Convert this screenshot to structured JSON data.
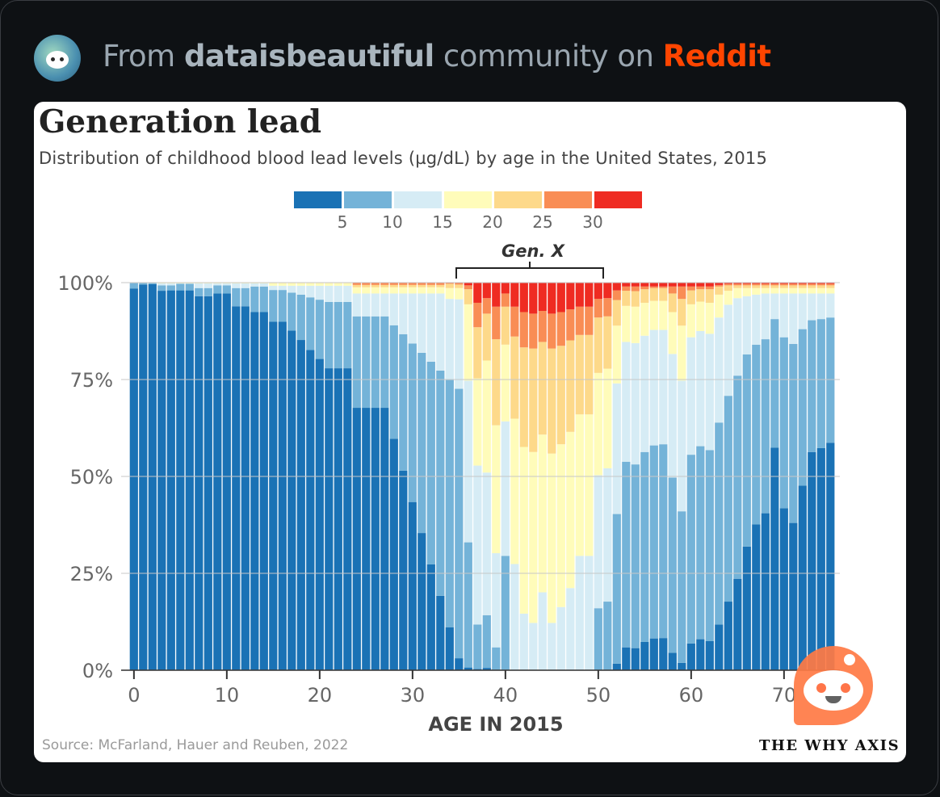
{
  "header": {
    "prefix": "From",
    "community": "dataisbeautiful",
    "middle": "community on",
    "platform": "Reddit"
  },
  "colors": {
    "accent": "#ff4500",
    "bins": [
      "#1a72b5",
      "#74b3d8",
      "#d6ecf5",
      "#fffcba",
      "#fdd98a",
      "#f98d55",
      "#ef2b22"
    ]
  },
  "footer": {
    "source": "Source: McFarland, Hauer and Reuben, 2022",
    "brand": "THE WHY AXIS"
  },
  "chart_data": {
    "type": "bar",
    "stacked": true,
    "title": "Generation lead",
    "subtitle": "Distribution of childhood blood lead levels (µg/dL) by age in the United States, 2015",
    "xlabel": "AGE IN 2015",
    "ylabel": "",
    "ylim": [
      0,
      100
    ],
    "yticks": [
      "0%",
      "25%",
      "50%",
      "75%",
      "100%"
    ],
    "xticks": [
      "0",
      "10",
      "20",
      "30",
      "40",
      "50",
      "60",
      "70"
    ],
    "legend": {
      "placement": "top-center",
      "labels": [
        "5",
        "10",
        "15",
        "20",
        "25",
        "30"
      ]
    },
    "annotation": {
      "label": "Gen. X",
      "from_age": 35,
      "to_age": 50
    },
    "x": [
      0,
      1,
      2,
      3,
      4,
      5,
      6,
      7,
      8,
      9,
      10,
      11,
      12,
      13,
      14,
      15,
      16,
      17,
      18,
      19,
      20,
      21,
      22,
      23,
      24,
      25,
      26,
      27,
      28,
      29,
      30,
      31,
      32,
      33,
      34,
      35,
      36,
      37,
      38,
      39,
      40,
      41,
      42,
      43,
      44,
      45,
      46,
      47,
      48,
      49,
      50,
      51,
      52,
      53,
      54,
      55,
      56,
      57,
      58,
      59,
      60,
      61,
      62,
      63,
      64,
      65,
      66,
      67,
      68,
      69,
      70,
      71,
      72,
      73,
      74,
      75
    ],
    "cumulative_series_note": "each series gives cumulative % at the top of that bin; remaining to 100% is >30",
    "series": [
      {
        "name": "<5",
        "cumulative": [
          98.5,
          99.5,
          99.6,
          97.9,
          98,
          98,
          98,
          96.5,
          96.5,
          97.2,
          97.2,
          93.9,
          93.9,
          92.4,
          92.4,
          89.9,
          89.9,
          87.6,
          85.2,
          82.6,
          80.3,
          77.9,
          77.9,
          77.9,
          67.7,
          67.7,
          67.7,
          67.7,
          59.7,
          51.5,
          43.4,
          35.4,
          27.3,
          19.2,
          11.1,
          3.1,
          0.7,
          0.3,
          0.6,
          0,
          0,
          0,
          0,
          0,
          0,
          0,
          0,
          0,
          0,
          0,
          0,
          0,
          1.7,
          5.9,
          5.7,
          7.3,
          8.2,
          8.3,
          4.5,
          1.9,
          6.9,
          8,
          7.5,
          11.8,
          17.7,
          23.6,
          31.9,
          37.6,
          40.5,
          57.4,
          41.8,
          38,
          47.6,
          56.3,
          57.3,
          58.7
        ]
      },
      {
        "name": "5-10",
        "cumulative": [
          99.9,
          99.9,
          99.9,
          99.3,
          99.3,
          99.7,
          99.7,
          98.6,
          98.6,
          99.3,
          99.3,
          98.6,
          98.6,
          99,
          99,
          98.1,
          98.1,
          97.4,
          96.9,
          96.2,
          95.6,
          95,
          95,
          95,
          91.3,
          91.3,
          91.3,
          91.3,
          89,
          86.7,
          84.3,
          81.9,
          79.6,
          77.3,
          74.9,
          72.6,
          33,
          11.8,
          14.2,
          5.9,
          29.5,
          0,
          0,
          0,
          0,
          0,
          0,
          0,
          0,
          0,
          16,
          17.7,
          40.3,
          53.8,
          53.1,
          56.3,
          58,
          58.3,
          49.7,
          41,
          55.6,
          57.8,
          56.8,
          63.9,
          70.8,
          76,
          81.5,
          84,
          85.4,
          90.6,
          85.9,
          84.2,
          88,
          90.3,
          90.6,
          91
        ]
      },
      {
        "name": "10-15",
        "cumulative": [
          99.9,
          99.9,
          99.9,
          99.8,
          99.8,
          99.8,
          99.8,
          99.8,
          99.8,
          99.8,
          99.8,
          99.8,
          99.8,
          99.8,
          99.8,
          99.2,
          99.2,
          99.2,
          99.2,
          99.2,
          99.2,
          99.2,
          99.2,
          99.2,
          97.2,
          97.2,
          97.2,
          97.2,
          97.2,
          97.2,
          97.2,
          97.2,
          97.2,
          97.2,
          95.8,
          95.7,
          74.7,
          52.8,
          51,
          30.2,
          64.2,
          27.4,
          14.6,
          12.2,
          20.1,
          12.2,
          16.3,
          21.2,
          29.5,
          29.5,
          50.3,
          52.1,
          74,
          84.7,
          84.4,
          86.3,
          87.8,
          87.8,
          81.6,
          74.7,
          85.9,
          87.5,
          86.8,
          91,
          94.3,
          96,
          96.5,
          96.9,
          97.2,
          97.2,
          97.2,
          97.2,
          97.2,
          97.2,
          97.2,
          97.2
        ]
      },
      {
        "name": "15-20",
        "cumulative": [
          99.95,
          99.95,
          99.95,
          99.95,
          99.95,
          99.95,
          99.95,
          99.95,
          99.95,
          99.95,
          99.95,
          99.95,
          99.95,
          99.95,
          99.95,
          99.9,
          99.9,
          99.9,
          99.9,
          99.9,
          99.9,
          99.9,
          99.9,
          99.9,
          98.8,
          98.8,
          98.8,
          98.8,
          98.8,
          98.8,
          98.8,
          98.8,
          98.8,
          98.8,
          98.6,
          98.6,
          94.4,
          75.3,
          79.9,
          63.2,
          84,
          64.9,
          57.6,
          56.3,
          60.8,
          55.9,
          58.3,
          61.5,
          66,
          66,
          76.7,
          77.8,
          88.9,
          94,
          93.8,
          94.8,
          95.3,
          95.3,
          92.4,
          88.9,
          94.4,
          95.1,
          94.8,
          96.9,
          97.9,
          98.6,
          98.6,
          98.6,
          98.6,
          98.6,
          98.6,
          98.6,
          98.6,
          98.6,
          98.6,
          98.6
        ]
      },
      {
        "name": "20-25",
        "cumulative": [
          100,
          100,
          100,
          100,
          100,
          100,
          100,
          100,
          100,
          100,
          100,
          100,
          100,
          100,
          100,
          99.95,
          99.95,
          99.95,
          99.95,
          99.95,
          99.95,
          99.95,
          99.95,
          99.95,
          99.4,
          99.4,
          99.4,
          99.4,
          99.4,
          99.4,
          99.4,
          99.4,
          99.4,
          99.4,
          99.7,
          99.5,
          98.3,
          88.5,
          92,
          85.4,
          93.8,
          86.1,
          83.3,
          83,
          84.7,
          83,
          83.7,
          85.1,
          86.5,
          86.5,
          91,
          91.3,
          95.5,
          97.9,
          97.8,
          98.3,
          98.6,
          98.6,
          97.2,
          95.8,
          98,
          98.3,
          98.3,
          99,
          99.3,
          99.3,
          99.3,
          99.3,
          99.3,
          99.3,
          99.3,
          99.3,
          99.3,
          99.3,
          99.3,
          99.3
        ]
      },
      {
        "name": "25-30",
        "cumulative": [
          100,
          100,
          100,
          100,
          100,
          100,
          100,
          100,
          100,
          100,
          100,
          100,
          100,
          100,
          100,
          100,
          100,
          100,
          100,
          100,
          100,
          100,
          100,
          100,
          99.9,
          99.9,
          99.9,
          99.9,
          99.9,
          99.9,
          99.9,
          99.9,
          99.9,
          99.9,
          99.9,
          99.9,
          99.3,
          94.8,
          96,
          93.8,
          97.2,
          93.8,
          92.4,
          92,
          92.7,
          92,
          92.4,
          93.1,
          93.8,
          93.8,
          95.8,
          96,
          98,
          99,
          99,
          99,
          99,
          99,
          99,
          99,
          99,
          99,
          99,
          99.4,
          99.7,
          99.7,
          99.7,
          99.7,
          99.7,
          99.7,
          99.7,
          99.7,
          99.7,
          99.7,
          99.7,
          99.7
        ]
      },
      {
        "name": ">30",
        "cumulative": [
          100,
          100,
          100,
          100,
          100,
          100,
          100,
          100,
          100,
          100,
          100,
          100,
          100,
          100,
          100,
          100,
          100,
          100,
          100,
          100,
          100,
          100,
          100,
          100,
          100,
          100,
          100,
          100,
          100,
          100,
          100,
          100,
          100,
          100,
          100,
          100,
          100,
          100,
          100,
          100,
          100,
          100,
          100,
          100,
          100,
          100,
          100,
          100,
          100,
          100,
          100,
          100,
          100,
          100,
          100,
          100,
          100,
          100,
          100,
          100,
          100,
          100,
          100,
          100,
          100,
          100,
          100,
          100,
          100,
          100,
          100,
          100,
          100,
          100,
          100,
          100
        ]
      }
    ]
  }
}
